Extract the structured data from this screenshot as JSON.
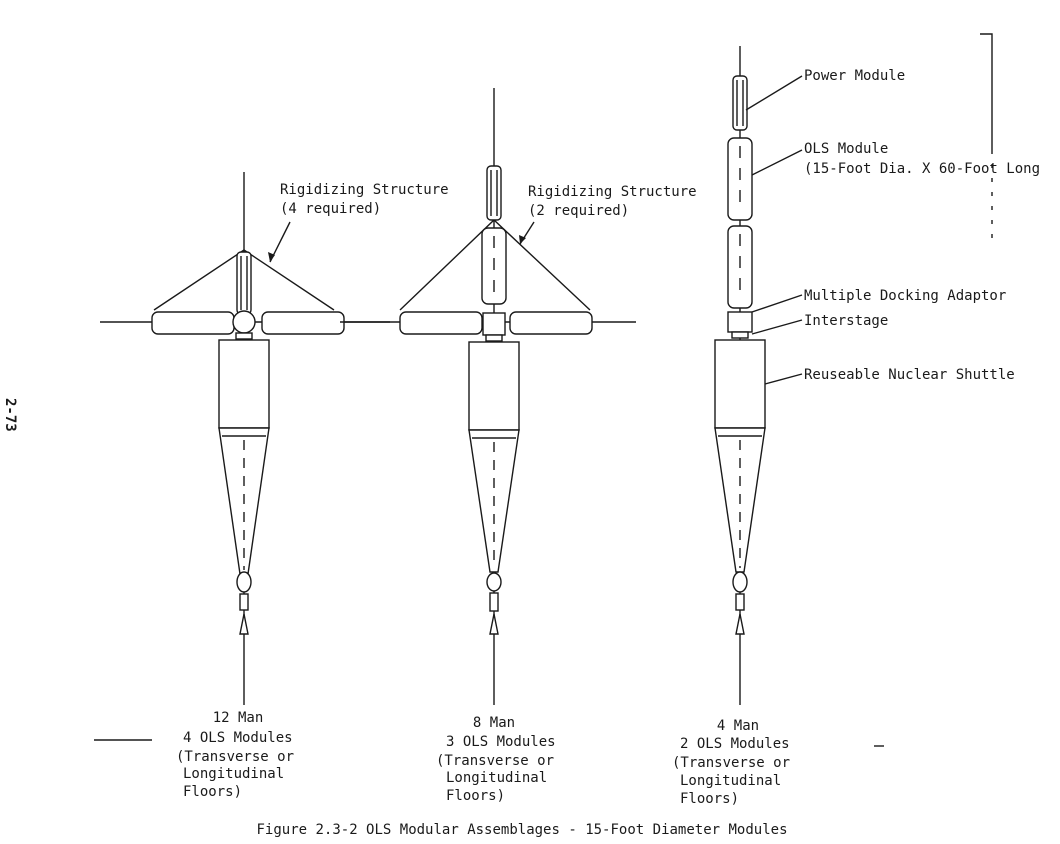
{
  "page_number": "2-73",
  "labels": {
    "rigidizing_left_1": "Rigidizing Structure",
    "rigidizing_left_2": "(4 required)",
    "rigidizing_mid_1": "Rigidizing Structure",
    "rigidizing_mid_2": "(2 required)",
    "power_module": "Power Module",
    "ols_module_1": "OLS Module",
    "ols_module_2": "(15-Foot Dia. X 60-Foot Long",
    "docking_adaptor": "Multiple Docking Adaptor",
    "interstage": "Interstage",
    "nuclear_shuttle": "Reuseable Nuclear Shuttle"
  },
  "configurations": [
    {
      "line1": "12 Man",
      "line2": "4 OLS Modules",
      "line3": "(Transverse or",
      "line4": "Longitudinal",
      "line5": "Floors)"
    },
    {
      "line1": "8 Man",
      "line2": "3 OLS Modules",
      "line3": "(Transverse or",
      "line4": "Longitudinal",
      "line5": "Floors)"
    },
    {
      "line1": "4 Man",
      "line2": "2 OLS Modules",
      "line3": "(Transverse or",
      "line4": "Longitudinal",
      "line5": "Floors)"
    }
  ],
  "caption": "Figure 2.3-2  OLS Modular Assemblages - 15-Foot Diameter Modules"
}
